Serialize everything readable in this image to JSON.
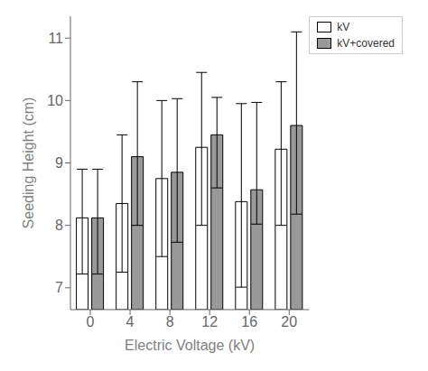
{
  "chart_data": {
    "type": "bar",
    "categories": [
      0,
      4,
      8,
      12,
      16,
      20
    ],
    "series": [
      {
        "name": "kV",
        "color": "#ffffff",
        "values": [
          8.12,
          8.35,
          8.75,
          9.25,
          8.38,
          9.22
        ],
        "errors_upper": [
          0.78,
          1.1,
          1.25,
          1.2,
          1.57,
          1.08
        ],
        "errors_lower": [
          0.9,
          1.1,
          1.25,
          1.25,
          1.37,
          1.22
        ]
      },
      {
        "name": "kV+covered",
        "color": "#999999",
        "values": [
          8.12,
          9.1,
          8.85,
          9.45,
          8.57,
          9.6
        ],
        "errors_upper": [
          0.78,
          1.2,
          1.18,
          0.6,
          1.4,
          1.5
        ],
        "errors_lower": [
          0.9,
          1.1,
          1.12,
          0.85,
          0.55,
          1.42
        ]
      }
    ],
    "xlabel": "Electric Voltage (kV)",
    "ylabel": "Seeding Height (cm)",
    "ylim": [
      6.65,
      11.35
    ],
    "yticks": [
      7,
      8,
      9,
      10,
      11
    ],
    "legend": "upper right"
  }
}
